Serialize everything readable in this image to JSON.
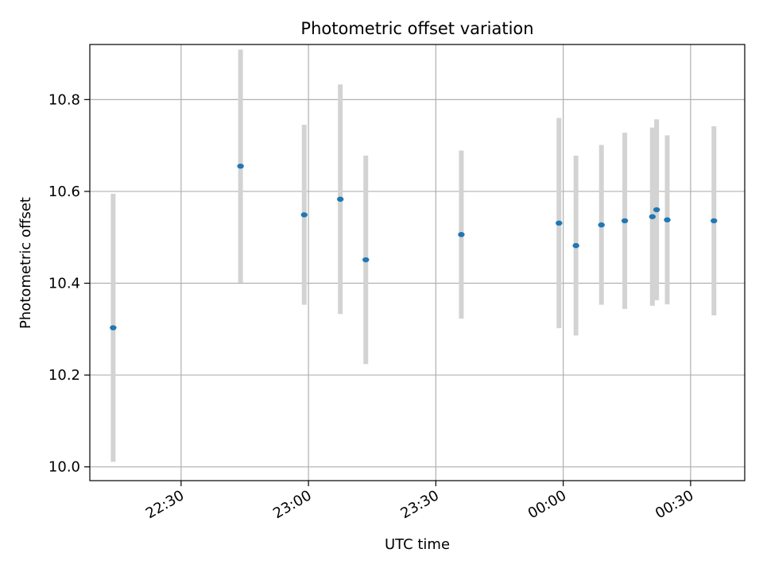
{
  "chart_data": {
    "type": "scatter",
    "title": "Photometric offset variation",
    "xlabel": "UTC time",
    "ylabel": "Photometric offset",
    "x_ticks": [
      "22:30",
      "23:00",
      "23:30",
      "00:00",
      "00:30"
    ],
    "y_ticks": [
      "10.0",
      "10.2",
      "10.4",
      "10.6",
      "10.8"
    ],
    "xlim": [
      "2000-01-01T22:08:30",
      "2000-01-02T00:42:45"
    ],
    "ylim": [
      9.97,
      10.92
    ],
    "grid": true,
    "colors": {
      "marker": "#1f77b4",
      "errorbar": "#d3d3d3",
      "grid": "#b0b0b0"
    },
    "points": [
      {
        "x": "2000-01-01T22:14:00",
        "y": 10.303,
        "err": 0.292
      },
      {
        "x": "2000-01-01T22:44:00",
        "y": 10.655,
        "err": 0.254
      },
      {
        "x": "2000-01-01T22:59:00",
        "y": 10.549,
        "err": 0.196
      },
      {
        "x": "2000-01-01T23:07:30",
        "y": 10.583,
        "err": 0.25
      },
      {
        "x": "2000-01-01T23:13:30",
        "y": 10.451,
        "err": 0.227
      },
      {
        "x": "2000-01-01T23:36:00",
        "y": 10.506,
        "err": 0.183
      },
      {
        "x": "2000-01-01T23:59:00",
        "y": 10.531,
        "err": 0.229
      },
      {
        "x": "2000-01-02T00:03:00",
        "y": 10.482,
        "err": 0.196
      },
      {
        "x": "2000-01-02T00:09:00",
        "y": 10.527,
        "err": 0.174
      },
      {
        "x": "2000-01-02T00:14:30",
        "y": 10.536,
        "err": 0.192
      },
      {
        "x": "2000-01-02T00:21:00",
        "y": 10.545,
        "err": 0.194
      },
      {
        "x": "2000-01-02T00:22:00",
        "y": 10.56,
        "err": 0.197
      },
      {
        "x": "2000-01-02T00:24:30",
        "y": 10.538,
        "err": 0.184
      },
      {
        "x": "2000-01-02T00:35:30",
        "y": 10.536,
        "err": 0.206
      }
    ]
  }
}
